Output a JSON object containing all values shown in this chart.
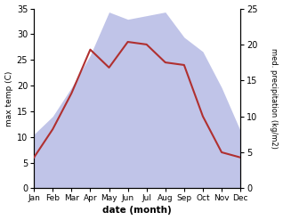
{
  "months": [
    "Jan",
    "Feb",
    "Mar",
    "Apr",
    "May",
    "Jun",
    "Jul",
    "Aug",
    "Sep",
    "Oct",
    "Nov",
    "Dec"
  ],
  "max_temp": [
    6,
    11.5,
    18.5,
    27,
    23.5,
    28.5,
    28,
    24.5,
    24,
    14,
    7,
    6
  ],
  "precipitation": [
    7.5,
    10,
    14,
    18.5,
    24.5,
    23.5,
    24,
    24.5,
    21,
    19,
    14,
    8
  ],
  "temp_color": "#b03030",
  "precip_fill_color": "#c0c4e8",
  "precip_edge_color": "#b0b4d8",
  "temp_ylim": [
    0,
    35
  ],
  "temp_yticks": [
    0,
    5,
    10,
    15,
    20,
    25,
    30,
    35
  ],
  "precip_ylim": [
    0,
    25
  ],
  "precip_yticks": [
    0,
    5,
    10,
    15,
    20,
    25
  ],
  "xlabel": "date (month)",
  "ylabel_left": "max temp (C)",
  "ylabel_right": "med. precipitation (kg/m2)",
  "bg_color": "#ffffff"
}
